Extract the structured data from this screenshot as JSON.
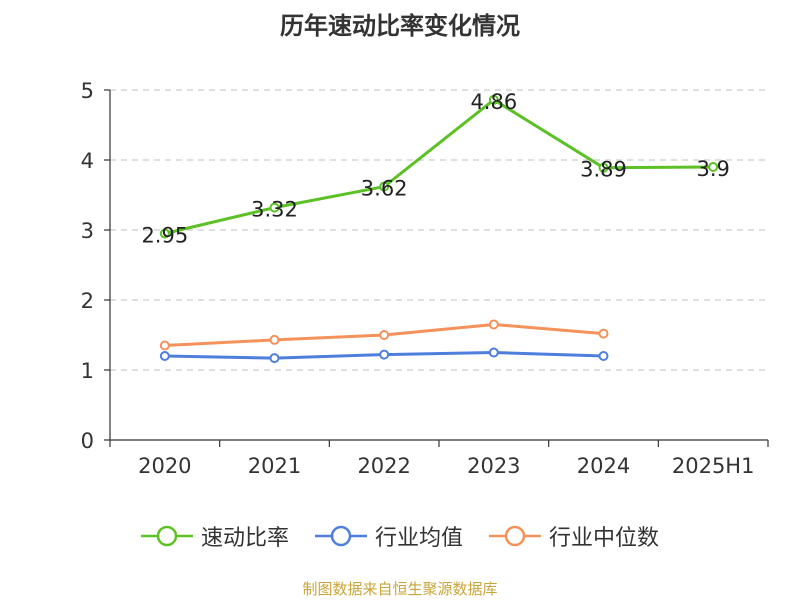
{
  "chart_data": {
    "type": "line",
    "title": "历年速动比率变化情况",
    "categories": [
      "2020",
      "2021",
      "2022",
      "2023",
      "2024",
      "2025H1"
    ],
    "ylim": [
      0,
      5
    ],
    "yticks": [
      0,
      1,
      2,
      3,
      4,
      5
    ],
    "grid": true,
    "legend_position": "bottom",
    "series": [
      {
        "name": "速动比率",
        "color": "#5cc127",
        "values": [
          2.95,
          3.32,
          3.62,
          4.86,
          3.89,
          3.9
        ],
        "labels": [
          "2.95",
          "3.32",
          "3.62",
          "4.86",
          "3.89",
          "3.9"
        ],
        "show_labels": true
      },
      {
        "name": "行业均值",
        "color": "#4e7fdc",
        "values": [
          1.2,
          1.17,
          1.22,
          1.25,
          1.2,
          null
        ],
        "show_labels": false
      },
      {
        "name": "行业中位数",
        "color": "#f5915a",
        "values": [
          1.35,
          1.43,
          1.5,
          1.65,
          1.52,
          null
        ],
        "show_labels": false
      }
    ]
  },
  "source_text": "制图数据来自恒生聚源数据库"
}
